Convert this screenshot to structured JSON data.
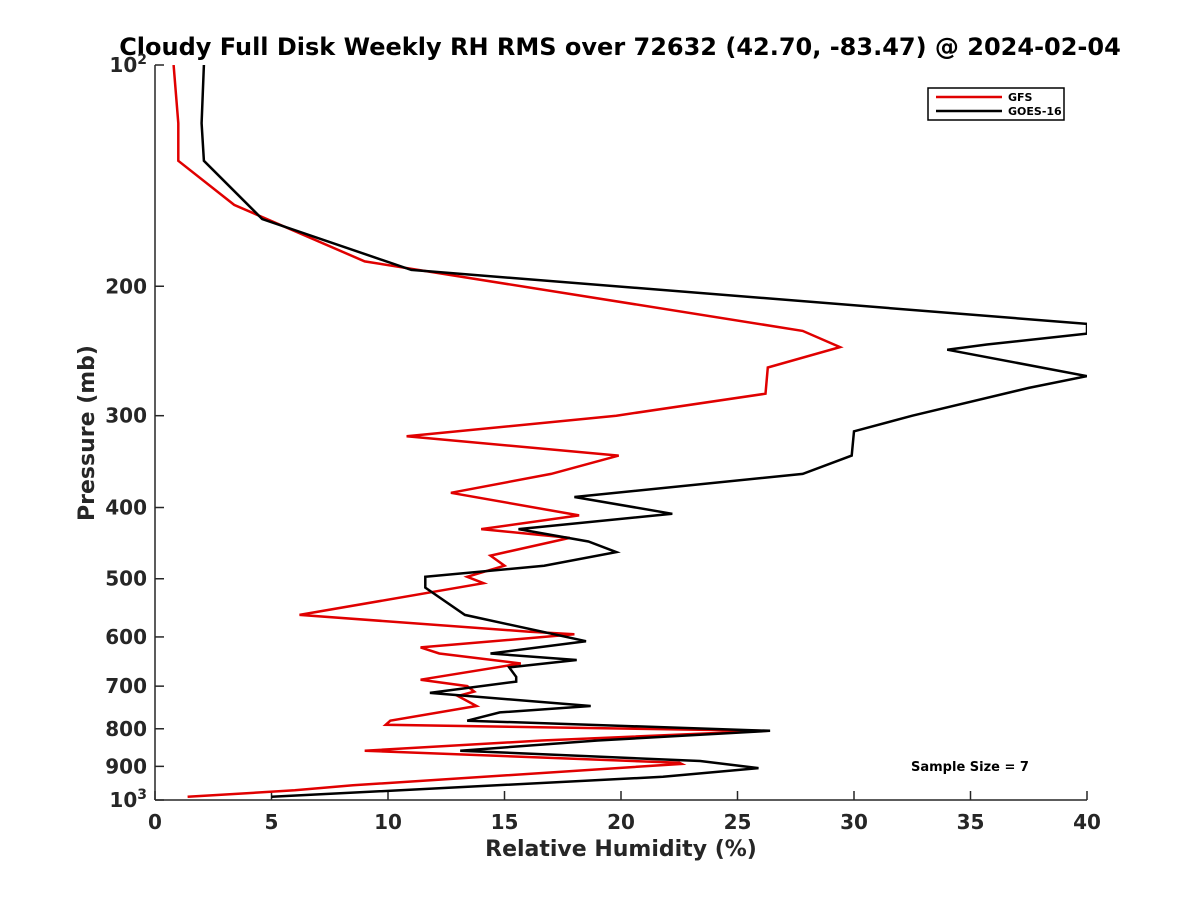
{
  "chart_data": {
    "type": "line",
    "title": "Cloudy Full Disk Weekly RH RMS over 72632 (42.70, -83.47) @ 2024-02-04",
    "xlabel": "Relative Humidity (%)",
    "ylabel": "Pressure (mb)",
    "xlim": [
      0,
      40
    ],
    "ylim": [
      100,
      1000
    ],
    "y_scale": "log",
    "y_reversed": true,
    "x_ticks": [
      0,
      5,
      10,
      15,
      20,
      25,
      30,
      35,
      40
    ],
    "y_ticks": [
      {
        "value": 100,
        "label": "10",
        "sup": "2"
      },
      {
        "value": 200,
        "label": "200",
        "sup": ""
      },
      {
        "value": 300,
        "label": "300",
        "sup": ""
      },
      {
        "value": 400,
        "label": "400",
        "sup": ""
      },
      {
        "value": 500,
        "label": "500",
        "sup": ""
      },
      {
        "value": 600,
        "label": "600",
        "sup": ""
      },
      {
        "value": 700,
        "label": "700",
        "sup": ""
      },
      {
        "value": 800,
        "label": "800",
        "sup": ""
      },
      {
        "value": 900,
        "label": "900",
        "sup": ""
      },
      {
        "value": 1000,
        "label": "10",
        "sup": "3"
      }
    ],
    "grid": false,
    "legend_position": "top-right",
    "annotation": "Sample Size = 7",
    "series": [
      {
        "name": "GFS",
        "color": "#e00000",
        "points": [
          [
            0.8,
            100
          ],
          [
            1.0,
            120
          ],
          [
            1.0,
            135
          ],
          [
            3.4,
            155
          ],
          [
            9.0,
            185
          ],
          [
            27.8,
            230
          ],
          [
            29.4,
            242
          ],
          [
            26.3,
            258
          ],
          [
            26.2,
            280
          ],
          [
            19.8,
            300
          ],
          [
            10.8,
            320
          ],
          [
            19.9,
            340
          ],
          [
            17.0,
            360
          ],
          [
            12.7,
            382
          ],
          [
            18.2,
            410
          ],
          [
            14.0,
            428
          ],
          [
            17.8,
            440
          ],
          [
            14.4,
            465
          ],
          [
            15.0,
            480
          ],
          [
            13.4,
            497
          ],
          [
            14.1,
            507
          ],
          [
            6.2,
            560
          ],
          [
            16.0,
            590
          ],
          [
            18.0,
            595
          ],
          [
            11.4,
            620
          ],
          [
            12.2,
            632
          ],
          [
            15.7,
            652
          ],
          [
            11.4,
            686
          ],
          [
            13.4,
            700
          ],
          [
            13.7,
            712
          ],
          [
            13.0,
            722
          ],
          [
            13.8,
            745
          ],
          [
            10.1,
            780
          ],
          [
            9.9,
            790
          ],
          [
            26.3,
            805
          ],
          [
            16.6,
            830
          ],
          [
            9.0,
            857
          ],
          [
            22.5,
            890
          ],
          [
            22.6,
            893
          ],
          [
            8.5,
            955
          ],
          [
            6.0,
            970
          ],
          [
            1.4,
            990
          ]
        ]
      },
      {
        "name": "GOES-16",
        "color": "#000000",
        "points": [
          [
            2.1,
            100
          ],
          [
            2.0,
            120
          ],
          [
            2.1,
            135
          ],
          [
            4.6,
            162
          ],
          [
            11.0,
            190
          ],
          [
            40.0,
            225
          ],
          [
            40.0,
            232
          ],
          [
            35.7,
            240
          ],
          [
            34.0,
            244
          ],
          [
            40.0,
            265
          ],
          [
            37.5,
            275
          ],
          [
            32.5,
            300
          ],
          [
            30.0,
            315
          ],
          [
            29.9,
            340
          ],
          [
            27.8,
            360
          ],
          [
            18.0,
            387
          ],
          [
            22.2,
            408
          ],
          [
            15.6,
            428
          ],
          [
            18.6,
            445
          ],
          [
            19.8,
            460
          ],
          [
            16.7,
            480
          ],
          [
            11.6,
            497
          ],
          [
            11.6,
            514
          ],
          [
            13.3,
            560
          ],
          [
            18.5,
            608
          ],
          [
            14.4,
            632
          ],
          [
            18.1,
            645
          ],
          [
            15.2,
            660
          ],
          [
            15.5,
            680
          ],
          [
            15.5,
            690
          ],
          [
            11.8,
            715
          ],
          [
            18.7,
            745
          ],
          [
            14.8,
            760
          ],
          [
            13.4,
            780
          ],
          [
            26.4,
            805
          ],
          [
            19.0,
            830
          ],
          [
            13.1,
            857
          ],
          [
            23.4,
            885
          ],
          [
            25.9,
            905
          ],
          [
            21.8,
            930
          ],
          [
            5.0,
            990
          ]
        ]
      }
    ]
  }
}
